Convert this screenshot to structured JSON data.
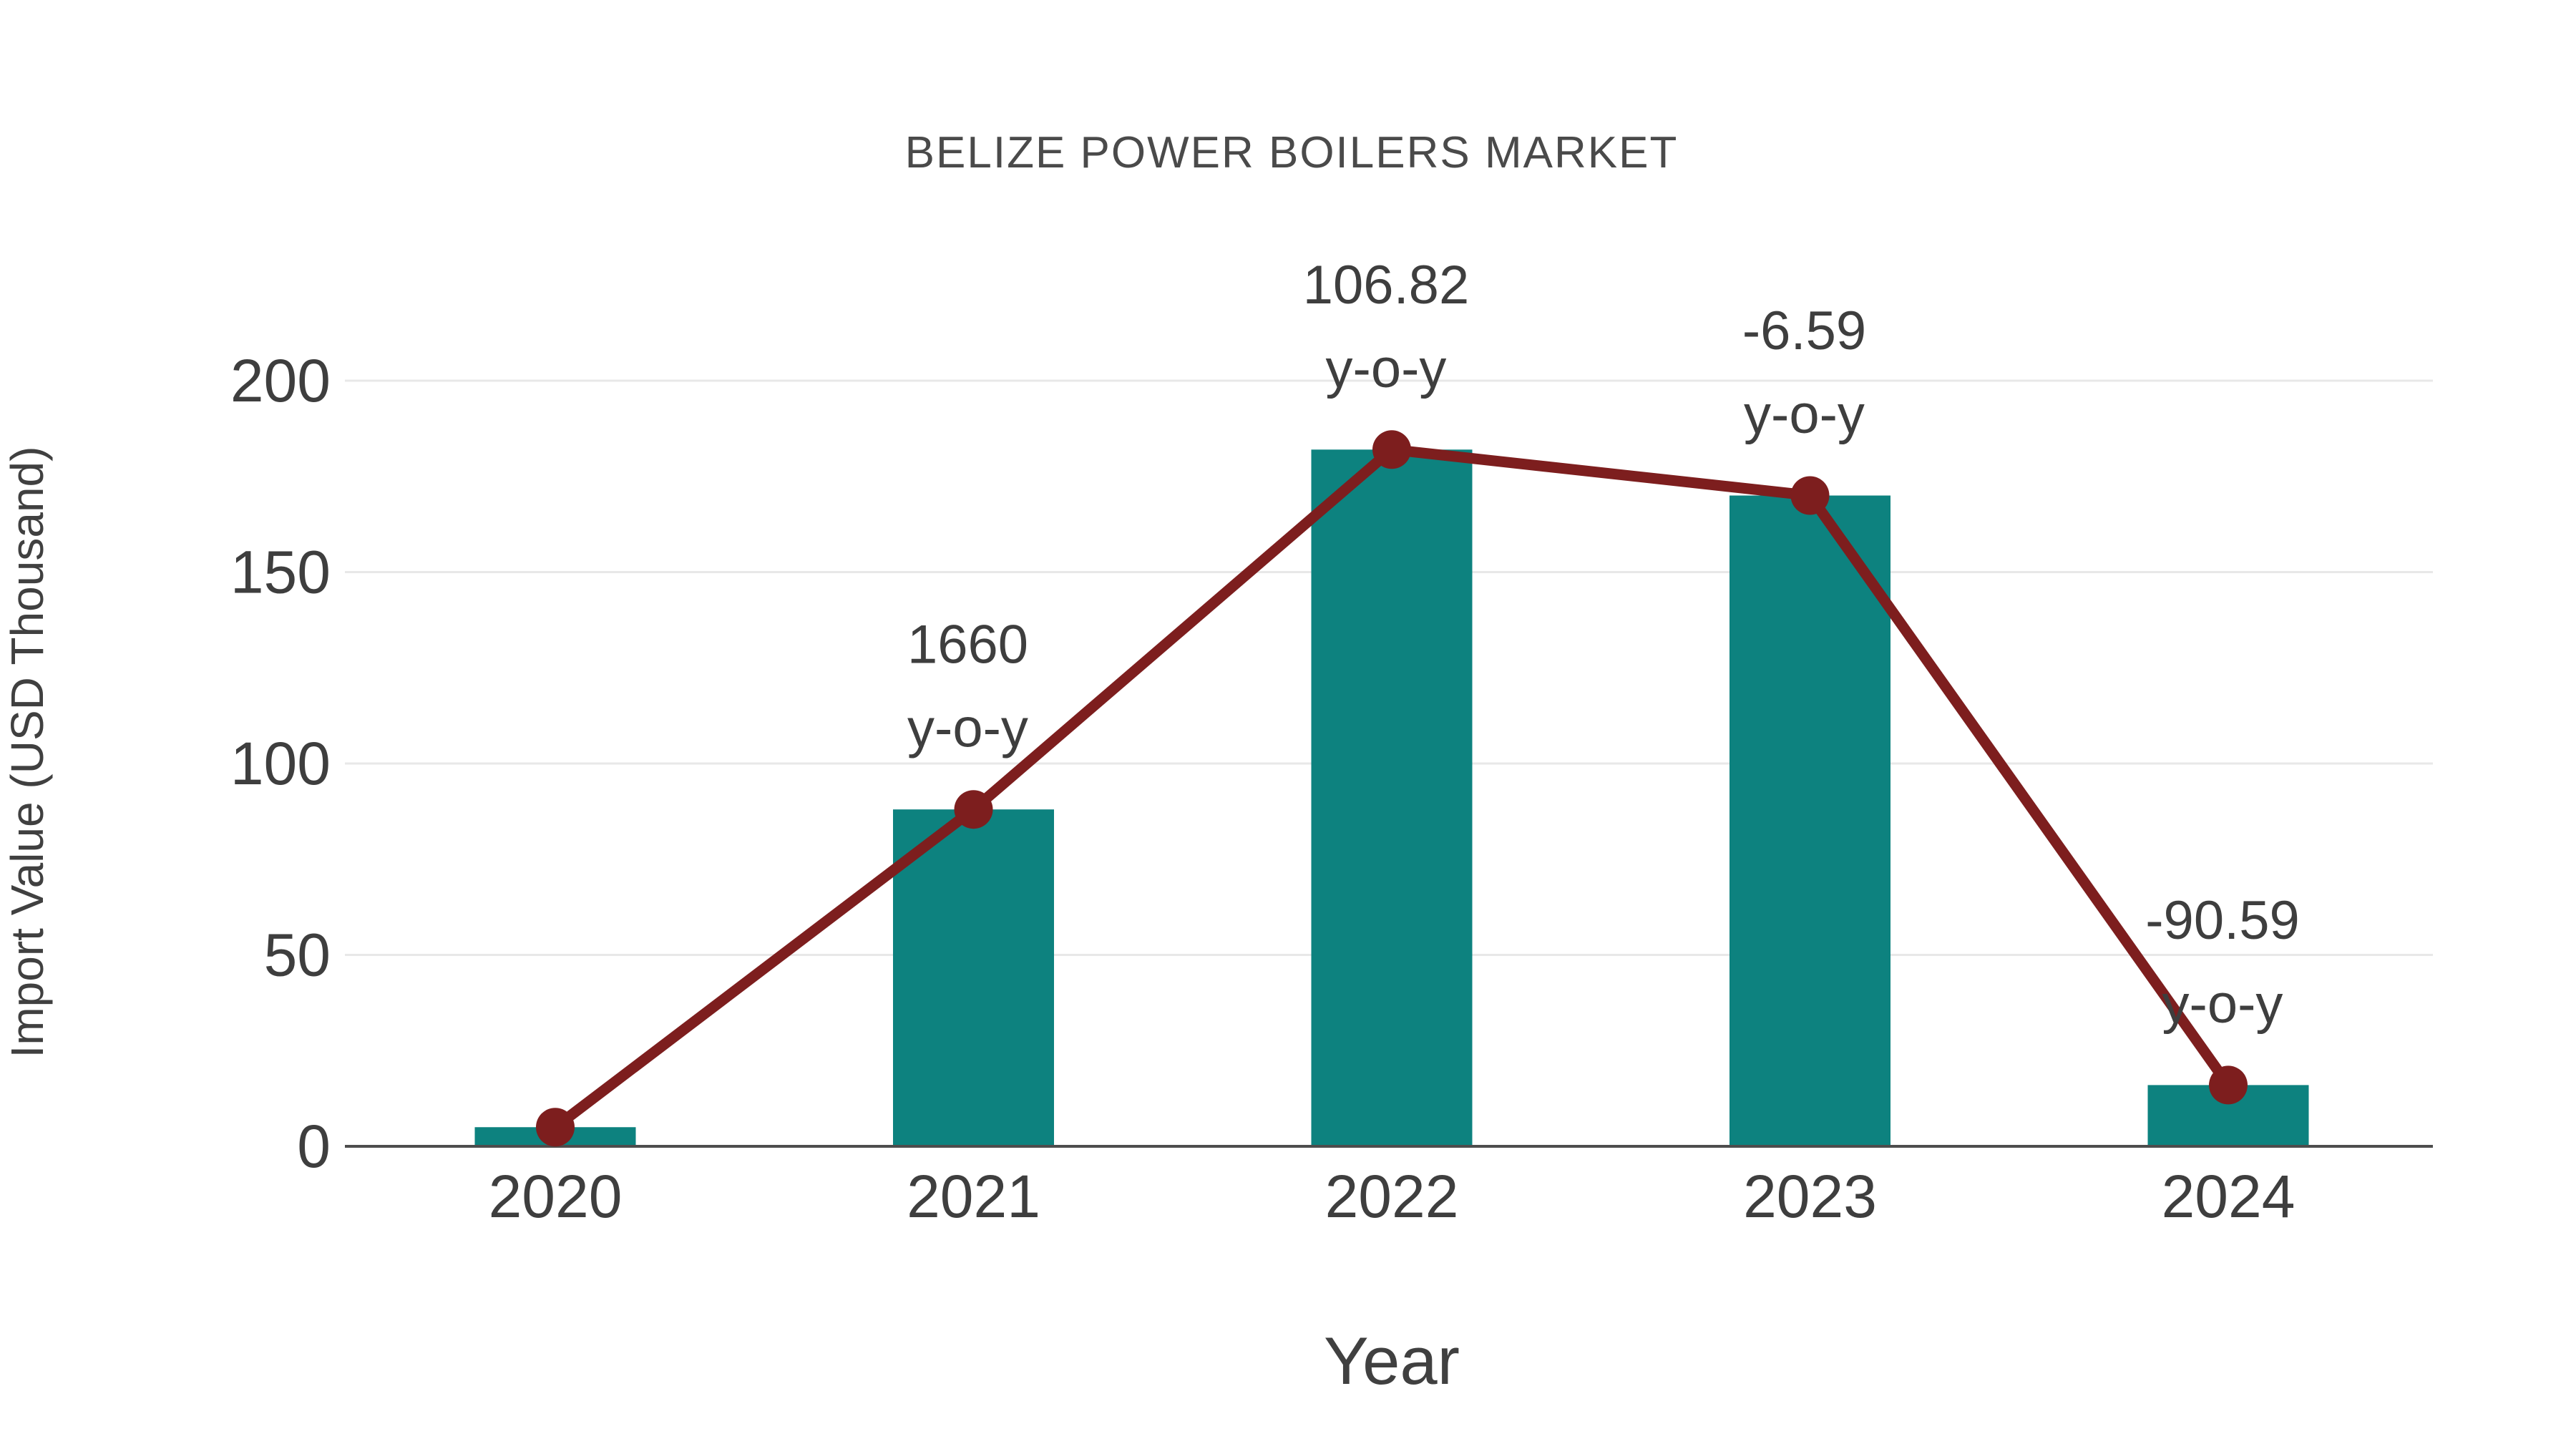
{
  "title": "BELIZE POWER BOILERS MARKET",
  "chart_data": {
    "type": "bar",
    "title": "BELIZE POWER BOILERS MARKET",
    "xlabel": "Year",
    "ylabel": "Import Value (USD Thousand)",
    "categories": [
      "2020",
      "2021",
      "2022",
      "2023",
      "2024"
    ],
    "series": [
      {
        "name": "Import Value bars",
        "type": "bar",
        "values": [
          5,
          88,
          182,
          170,
          16
        ]
      },
      {
        "name": "Import Value trend line",
        "type": "line",
        "values": [
          5,
          88,
          182,
          170,
          16
        ]
      }
    ],
    "annotations": [
      {
        "category": "2021",
        "line1": "1660",
        "line2": "y-o-y"
      },
      {
        "category": "2022",
        "line1": "106.82",
        "line2": "y-o-y"
      },
      {
        "category": "2023",
        "line1": "-6.59",
        "line2": "y-o-y"
      },
      {
        "category": "2024",
        "line1": "-90.59",
        "line2": "y-o-y"
      }
    ],
    "yticks": [
      0,
      50,
      100,
      150,
      200
    ],
    "ylim": [
      0,
      215
    ],
    "grid": true,
    "legend_position": "none"
  },
  "colors": {
    "bar": "#0d827f",
    "line": "#7d1e1e",
    "marker": "#7d1e1e",
    "gridline": "#e8e8e8",
    "axis_line": "#4d4d4d",
    "tick_text": "#3e3e3e",
    "annotation_text": "#3e3e3e",
    "title_text": "#4a4a4a",
    "background": "#ffffff"
  }
}
